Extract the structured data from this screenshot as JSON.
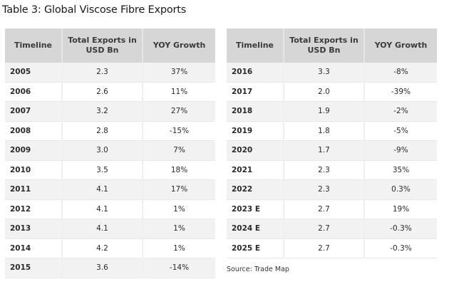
{
  "caption": "Table 3:  Global Viscose Fibre Exports",
  "headers": {
    "timeline": "Timeline",
    "exports_line1": "Total Exports in",
    "exports_line2": "USD Bn",
    "yoy": "YOY Growth"
  },
  "left_rows": [
    {
      "year": "2005",
      "exports": "2.3",
      "yoy": "37%"
    },
    {
      "year": "2006",
      "exports": "2.6",
      "yoy": "11%"
    },
    {
      "year": "2007",
      "exports": "3.2",
      "yoy": "27%"
    },
    {
      "year": "2008",
      "exports": "2.8",
      "yoy": "-15%"
    },
    {
      "year": "2009",
      "exports": "3.0",
      "yoy": "7%"
    },
    {
      "year": "2010",
      "exports": "3.5",
      "yoy": "18%"
    },
    {
      "year": "2011",
      "exports": "4.1",
      "yoy": "17%"
    },
    {
      "year": "2012",
      "exports": "4.1",
      "yoy": "1%"
    },
    {
      "year": "2013",
      "exports": "4.1",
      "yoy": "1%"
    },
    {
      "year": "2014",
      "exports": "4.2",
      "yoy": "1%"
    },
    {
      "year": "2015",
      "exports": "3.6",
      "yoy": "-14%"
    }
  ],
  "right_rows": [
    {
      "year": "2016",
      "exports": "3.3",
      "yoy": "-8%"
    },
    {
      "year": "2017",
      "exports": "2.0",
      "yoy": "-39%"
    },
    {
      "year": "2018",
      "exports": "1.9",
      "yoy": "-2%"
    },
    {
      "year": "2019",
      "exports": "1.8",
      "yoy": "-5%"
    },
    {
      "year": "2020",
      "exports": "1.7",
      "yoy": "-9%"
    },
    {
      "year": "2021",
      "exports": "2.3",
      "yoy": "35%"
    },
    {
      "year": "2022",
      "exports": "2.3",
      "yoy": "0.3%"
    },
    {
      "year": "2023 E",
      "exports": "2.7",
      "yoy": "19%"
    },
    {
      "year": "2024 E",
      "exports": "2.7",
      "yoy": "-0.3%"
    },
    {
      "year": "2025 E",
      "exports": "2.7",
      "yoy": "-0.3%"
    }
  ],
  "source": "Source: Trade Map",
  "colors": {
    "header_bg": "#d6d6d6",
    "stripe_bg": "#f2f2f3"
  }
}
